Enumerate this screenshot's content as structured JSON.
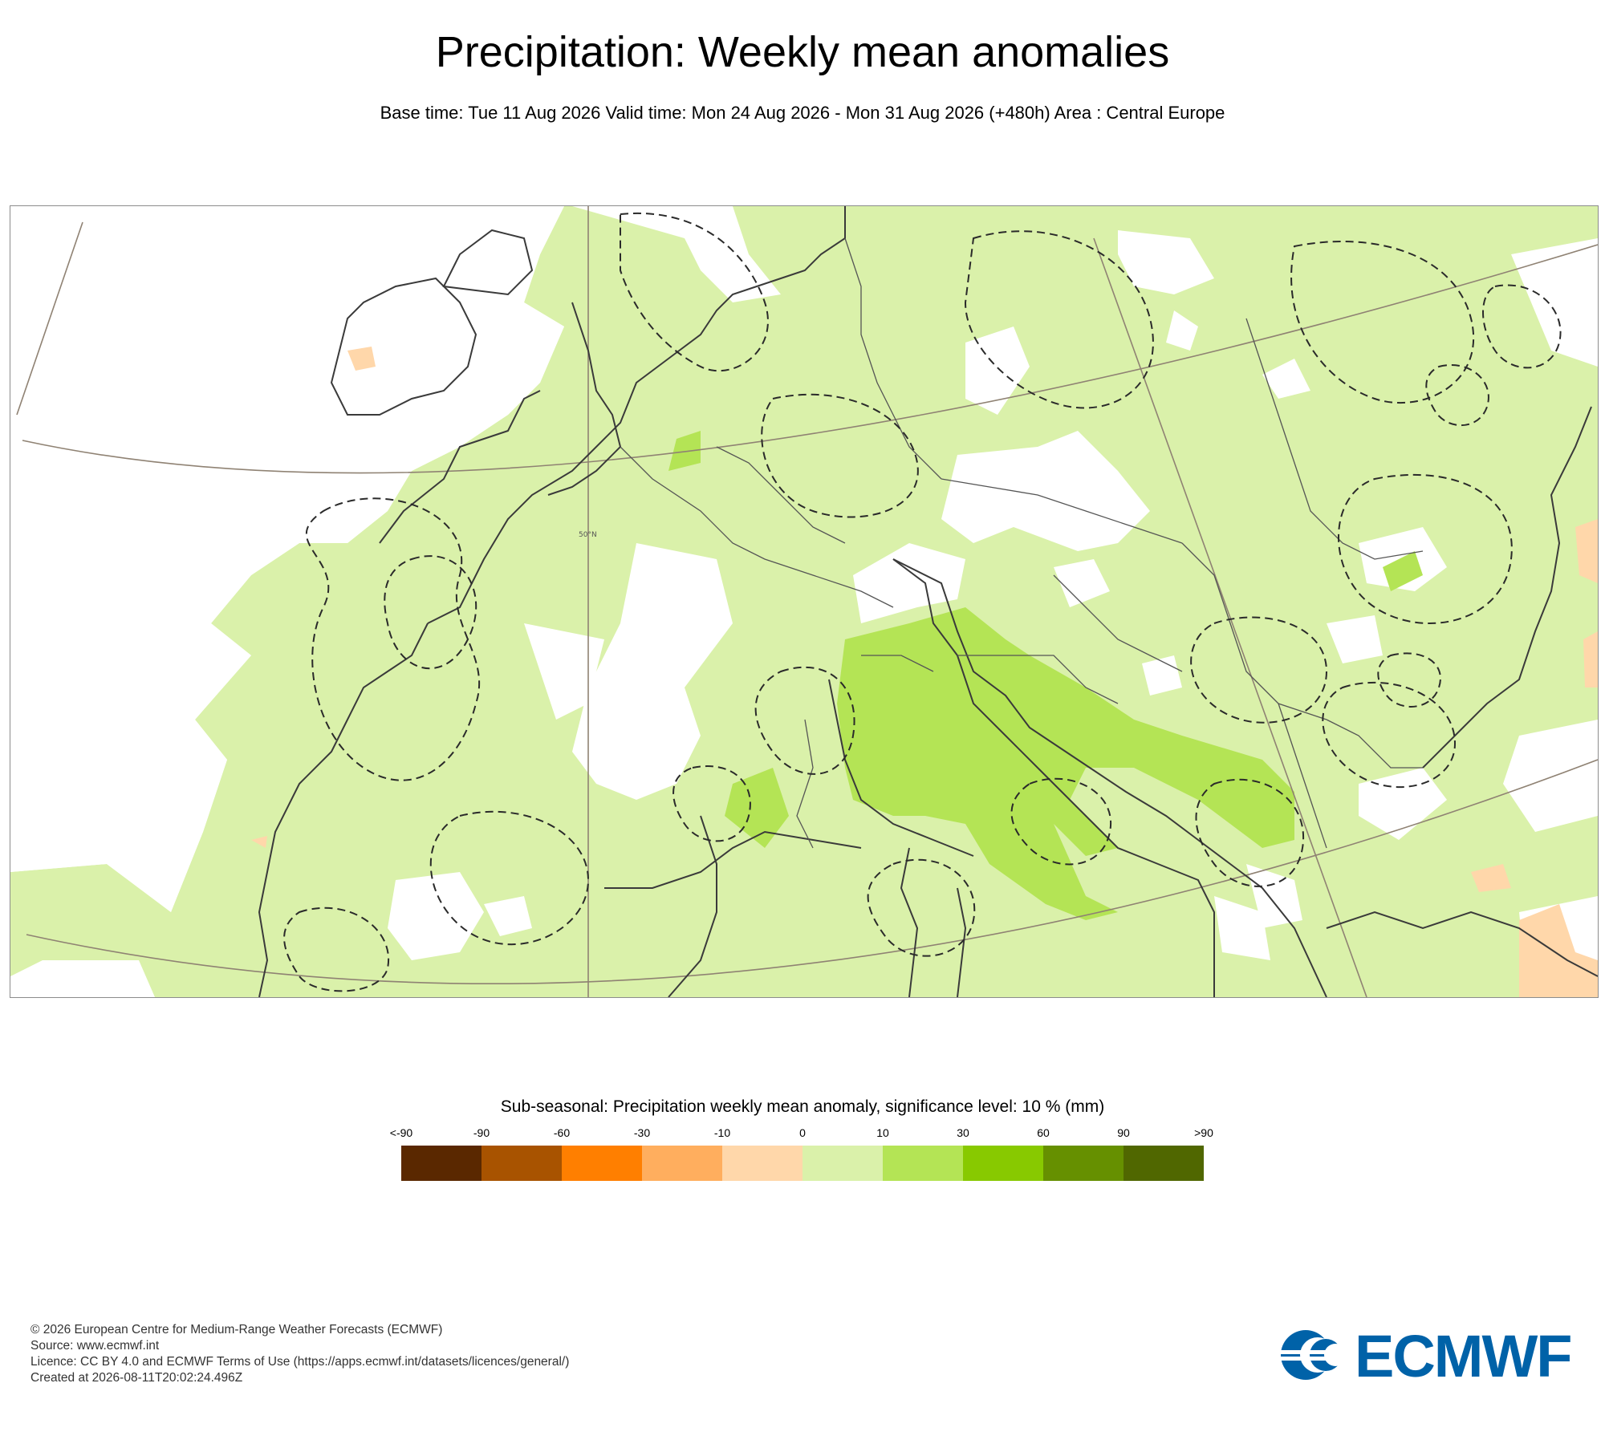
{
  "header": {
    "title": "Precipitation: Weekly mean anomalies",
    "subtitle": "Base time: Tue 11 Aug 2026 Valid time: Mon 24 Aug 2026 - Mon 31 Aug 2026 (+480h) Area : Central Europe"
  },
  "map": {
    "gridline_label": "50°N",
    "colors": {
      "land_border": "#3a3a3a",
      "graticule": "#8f8273",
      "significance_contour": "#2a2a2a"
    },
    "regions": [
      {
        "name": "positive anomaly 0-10 mm",
        "color": "#daf1aa"
      },
      {
        "name": "positive anomaly 10-30 mm",
        "color": "#b4e455"
      },
      {
        "name": "negative anomaly 0 to -10 mm",
        "color": "#ffd7aa"
      },
      {
        "name": "no significant signal",
        "color": "#ffffff"
      }
    ]
  },
  "legend": {
    "title": "Sub-seasonal: Precipitation weekly mean anomaly, significance level: 10 % (mm)",
    "ticks": [
      "<-90",
      "-90",
      "-60",
      "-30",
      "-10",
      "0",
      "10",
      "30",
      "60",
      "90",
      ">90"
    ],
    "colors": [
      "#5a2800",
      "#a85300",
      "#ff7f00",
      "#ffae5e",
      "#ffd7aa",
      "#daf1aa",
      "#b4e455",
      "#88c900",
      "#669000",
      "#506700"
    ]
  },
  "footer": {
    "lines": [
      "© 2026 European Centre for Medium-Range Weather Forecasts (ECMWF)",
      "Source: www.ecmwf.int",
      "Licence: CC BY 4.0 and ECMWF Terms of Use (https://apps.ecmwf.int/datasets/licences/general/)",
      "Created at 2026-08-11T20:02:24.496Z"
    ],
    "logo_text": "ECMWF"
  }
}
